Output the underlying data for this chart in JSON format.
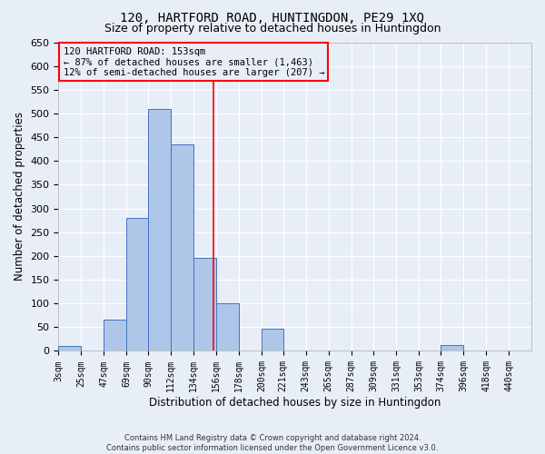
{
  "title": "120, HARTFORD ROAD, HUNTINGDON, PE29 1XQ",
  "subtitle": "Size of property relative to detached houses in Huntingdon",
  "xlabel": "Distribution of detached houses by size in Huntingdon",
  "ylabel": "Number of detached properties",
  "footnote1": "Contains HM Land Registry data © Crown copyright and database right 2024.",
  "footnote2": "Contains public sector information licensed under the Open Government Licence v3.0.",
  "annotation_line1": "120 HARTFORD ROAD: 153sqm",
  "annotation_line2": "← 87% of detached houses are smaller (1,463)",
  "annotation_line3": "12% of semi-detached houses are larger (207) →",
  "bar_left_edges": [
    3,
    25,
    47,
    69,
    90,
    112,
    134,
    156,
    178,
    200,
    221,
    243,
    265,
    287,
    309,
    331,
    353,
    374,
    396,
    418
  ],
  "bar_widths": [
    22,
    22,
    22,
    21,
    22,
    22,
    22,
    22,
    22,
    21,
    22,
    22,
    22,
    22,
    22,
    22,
    21,
    22,
    22,
    22
  ],
  "bar_heights": [
    10,
    0,
    65,
    280,
    510,
    435,
    195,
    100,
    0,
    47,
    0,
    0,
    0,
    0,
    0,
    0,
    0,
    13,
    0,
    0
  ],
  "bar_color": "#aec6e8",
  "bar_edgecolor": "#4472c4",
  "tick_labels": [
    "3sqm",
    "25sqm",
    "47sqm",
    "69sqm",
    "90sqm",
    "112sqm",
    "134sqm",
    "156sqm",
    "178sqm",
    "200sqm",
    "221sqm",
    "243sqm",
    "265sqm",
    "287sqm",
    "309sqm",
    "331sqm",
    "353sqm",
    "374sqm",
    "396sqm",
    "418sqm",
    "440sqm"
  ],
  "tick_positions": [
    3,
    25,
    47,
    69,
    90,
    112,
    134,
    156,
    178,
    200,
    221,
    243,
    265,
    287,
    309,
    331,
    353,
    374,
    396,
    418,
    440
  ],
  "red_line_x": 153,
  "ylim": [
    0,
    650
  ],
  "yticks": [
    0,
    50,
    100,
    150,
    200,
    250,
    300,
    350,
    400,
    450,
    500,
    550,
    600,
    650
  ],
  "xlim_min": 3,
  "xlim_max": 462,
  "bg_color": "#e8eef7",
  "grid_color": "#ffffff",
  "title_fontsize": 10,
  "subtitle_fontsize": 9
}
